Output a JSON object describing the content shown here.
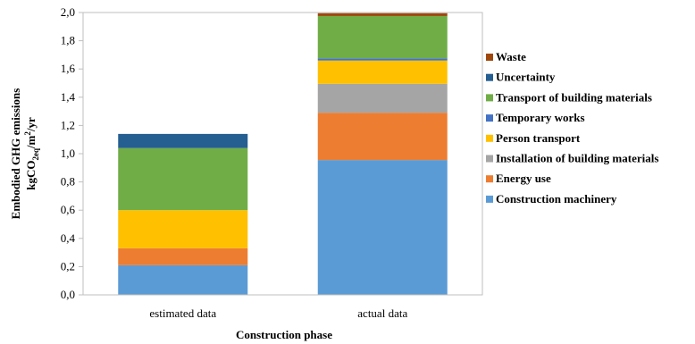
{
  "chart_data": {
    "type": "bar",
    "stacked": true,
    "categories": [
      "estimated data",
      "actual data"
    ],
    "xlabel": "Construction phase",
    "ylabel_line1": "Embodied GHG emissions",
    "ylabel_line2": "kgCO2eq/m2/yr",
    "ylim": [
      0,
      2.0
    ],
    "yticks": [
      "0,0",
      "0,2",
      "0,4",
      "0,6",
      "0,8",
      "1,0",
      "1,2",
      "1,4",
      "1,6",
      "1,8",
      "2,0"
    ],
    "grid": false,
    "legend_position": "right",
    "series": [
      {
        "name": "Construction machinery",
        "color": "#5B9BD5",
        "values": [
          0.21,
          0.955
        ]
      },
      {
        "name": "Energy use",
        "color": "#ED7D31",
        "values": [
          0.12,
          0.335
        ]
      },
      {
        "name": "Installation of building materials",
        "color": "#A5A5A5",
        "values": [
          0.0,
          0.205
        ]
      },
      {
        "name": "Person transport",
        "color": "#FFC000",
        "values": [
          0.27,
          0.165
        ]
      },
      {
        "name": "Temporary works",
        "color": "#4472C4",
        "values": [
          0.0,
          0.015
        ]
      },
      {
        "name": "Transport of building materials",
        "color": "#70AD47",
        "values": [
          0.44,
          0.3
        ]
      },
      {
        "name": "Uncertainty",
        "color": "#255E91",
        "values": [
          0.1,
          0.0
        ]
      },
      {
        "name": "Waste",
        "color": "#9E480E",
        "values": [
          0.0,
          0.02
        ]
      }
    ]
  }
}
